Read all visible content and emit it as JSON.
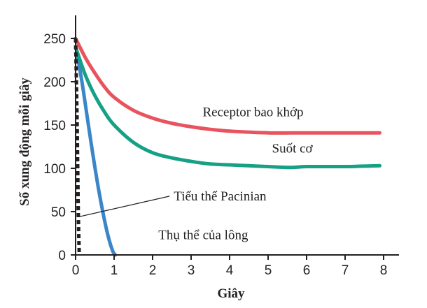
{
  "chart_data": {
    "type": "line",
    "xlabel": "Giây",
    "ylabel": "Số xung động mỗi giây",
    "xlim": [
      0,
      8.4
    ],
    "ylim": [
      0,
      275
    ],
    "x_ticks": [
      0,
      1,
      2,
      3,
      4,
      5,
      6,
      7,
      8
    ],
    "y_ticks": [
      0,
      50,
      100,
      150,
      200,
      250
    ],
    "grid": false,
    "series": [
      {
        "name": "Receptor bao khớp",
        "color": "#e8535e",
        "style": "solid",
        "x": [
          0,
          0.25,
          0.5,
          0.75,
          1,
          1.5,
          2,
          2.5,
          3,
          3.5,
          4,
          5,
          6,
          7,
          7.9
        ],
        "y": [
          250,
          228,
          210,
          194,
          182,
          167,
          158,
          152,
          148,
          145,
          143,
          141,
          141,
          141,
          141
        ]
      },
      {
        "name": "Suốt cơ",
        "color": "#16a085",
        "style": "solid",
        "x": [
          0,
          0.25,
          0.5,
          0.75,
          1,
          1.5,
          2,
          2.5,
          3,
          3.5,
          4,
          4.5,
          5,
          5.6,
          6,
          7,
          7.9
        ],
        "y": [
          240,
          208,
          184,
          165,
          150,
          130,
          118,
          112,
          108,
          105,
          104,
          103,
          102,
          101,
          102,
          102,
          103
        ]
      },
      {
        "name": "Thụ thể của lông",
        "color": "#3a86c8",
        "style": "solid",
        "x": [
          0.05,
          0.2,
          0.4,
          0.6,
          0.8,
          0.95,
          1.03
        ],
        "y": [
          230,
          190,
          130,
          75,
          30,
          6,
          0
        ]
      },
      {
        "name": "Tiểu thể Pacinian",
        "color": "#231f20",
        "style": "dashed",
        "x": [
          0,
          0.04,
          0.07,
          0.09,
          0.1
        ],
        "y": [
          250,
          150,
          50,
          8,
          0
        ]
      }
    ],
    "annotations": [
      {
        "text": "Receptor bao khớp",
        "x": 3.3,
        "y": 160
      },
      {
        "text": "Suốt cơ",
        "x": 5.1,
        "y": 118
      },
      {
        "text": "Tiểu thể Pacinian",
        "x": 2.55,
        "y": 63,
        "arrow_to": {
          "x": 0.08,
          "y": 44
        }
      },
      {
        "text": "Thụ thể của lông",
        "x": 2.15,
        "y": 18
      }
    ]
  }
}
